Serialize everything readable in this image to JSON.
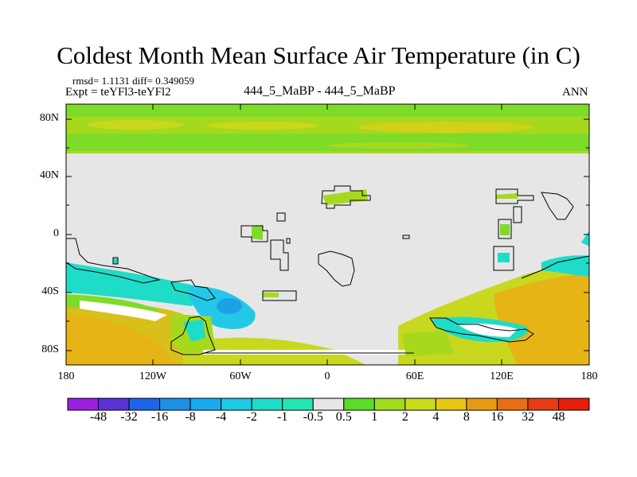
{
  "title": "Coldest Month Mean Surface Air Temperature (in C)",
  "stats": {
    "rmsd_text": "rmsd= 1.1131",
    "diff_text": "diff= 0.349059"
  },
  "expt_text": "Expt = teYFl3-teYFl2",
  "center_label": "444_5_MaBP - 444_5_MaBP",
  "season_label": "ANN",
  "lat_labels": [
    "80N",
    "40N",
    "0",
    "40S",
    "80S"
  ],
  "lon_labels": [
    "180",
    "120W",
    "60W",
    "0",
    "60E",
    "120E",
    "180"
  ],
  "colorbar": {
    "boundaries": [
      "-48",
      "-32",
      "-16",
      "-8",
      "-4",
      "-2",
      "-1",
      "-0.5",
      "0.5",
      "1",
      "2",
      "4",
      "8",
      "16",
      "32",
      "48"
    ],
    "colors": [
      "#9b1fe0",
      "#5a32d6",
      "#1e64e6",
      "#1e90e6",
      "#19aaf0",
      "#1ec8e6",
      "#1edcc8",
      "#23e6b4",
      "#e6e6e6",
      "#5adc28",
      "#a0dc1e",
      "#c8dc1e",
      "#e6c814",
      "#e69b14",
      "#e66e14",
      "#e63c14",
      "#e61e0a"
    ]
  },
  "colors": {
    "background": "#ffffff",
    "land_mask": "#e6e6e6",
    "outline": "#000000"
  }
}
